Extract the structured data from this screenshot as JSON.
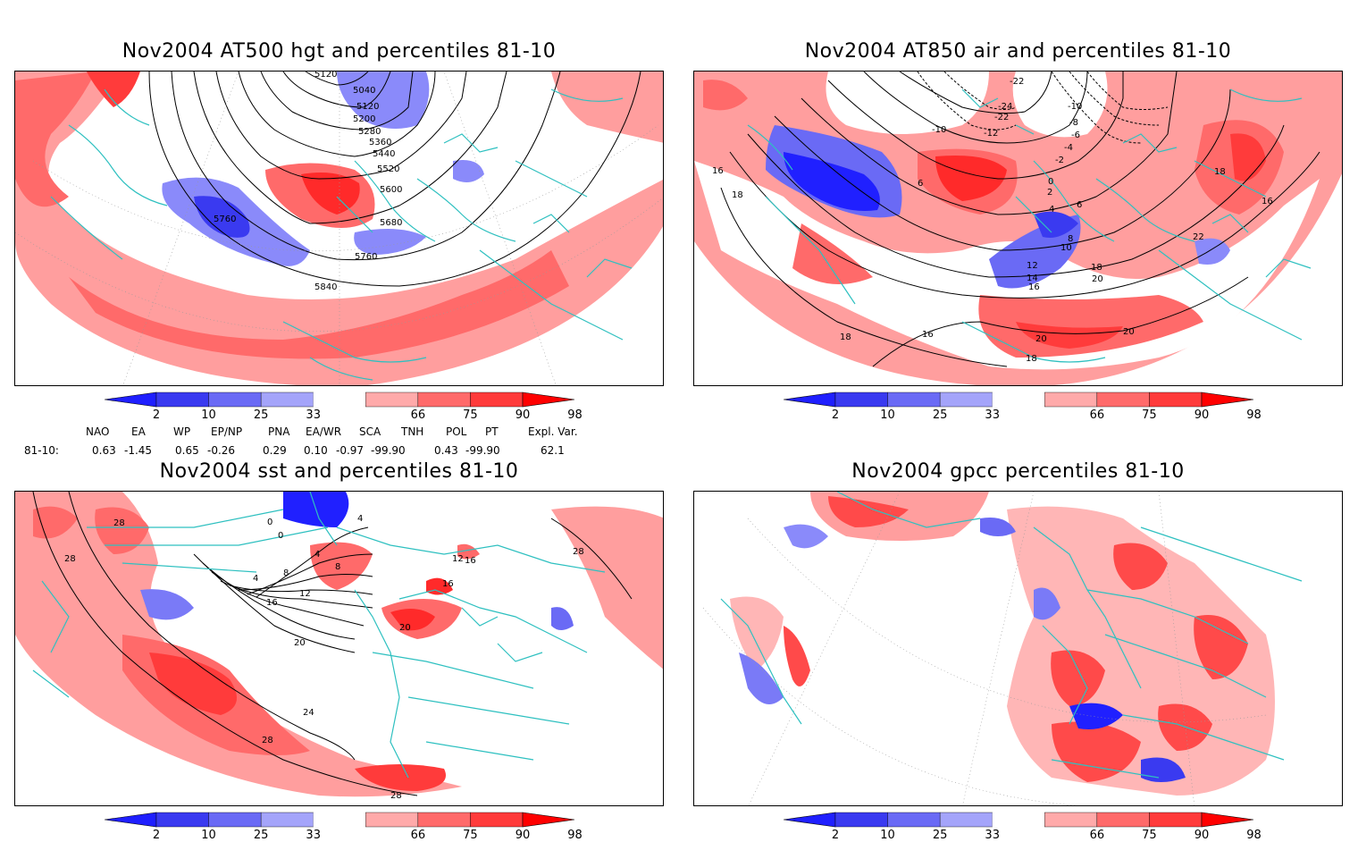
{
  "panels": [
    {
      "id": "hgt500",
      "title": "Nov2004 AT500 hgt and percentiles 81-10",
      "contour_labels": [
        "5120",
        "5040",
        "5120",
        "5200",
        "5280",
        "5360",
        "5440",
        "5520",
        "5600",
        "5680",
        "5760",
        "5760",
        "5840"
      ]
    },
    {
      "id": "air850",
      "title": "Nov2004 AT850 air and percentiles 81-10",
      "contour_labels": [
        "-22",
        "-24",
        "-22",
        "-12",
        "-10",
        "-10",
        "-8",
        "-6",
        "-4",
        "-2",
        "0",
        "2",
        "4",
        "6",
        "6",
        "8",
        "10",
        "12",
        "14",
        "16",
        "16",
        "16",
        "18",
        "18",
        "18",
        "18",
        "18",
        "20",
        "20",
        "20",
        "22",
        "16"
      ]
    },
    {
      "id": "sst",
      "title": "Nov2004 sst and percentiles 81-10",
      "contour_labels": [
        "28",
        "28",
        "0",
        "0",
        "4",
        "4",
        "4",
        "8",
        "8",
        "12",
        "12",
        "16",
        "16",
        "16",
        "20",
        "20",
        "24",
        "28",
        "28",
        "28"
      ]
    },
    {
      "id": "gpcc",
      "title": "Nov2004 gpcc percentiles 81-10",
      "contour_labels": []
    }
  ],
  "colorbar": {
    "labels": [
      "2",
      "10",
      "25",
      "33",
      "66",
      "75",
      "90",
      "98"
    ],
    "colors": [
      "#1f1fff",
      "#3a3af0",
      "#6a6af5",
      "#a4a4fa",
      "#ffffff",
      "#ffaaaa",
      "#ff6a6a",
      "#ff3b3b",
      "#ff0000"
    ]
  },
  "indices": {
    "headers": [
      "NAO",
      "EA",
      "WP",
      "EP/NP",
      "PNA",
      "EA/WR",
      "SCA",
      "TNH",
      "POL",
      "PT",
      "Expl. Var."
    ],
    "row_label": "81-10:",
    "values": [
      "0.63",
      "-1.45",
      "0.65",
      "-0.26",
      "0.29",
      "0.10",
      "-0.97",
      "-99.90",
      "0.43",
      "-99.90",
      "62.1"
    ]
  }
}
